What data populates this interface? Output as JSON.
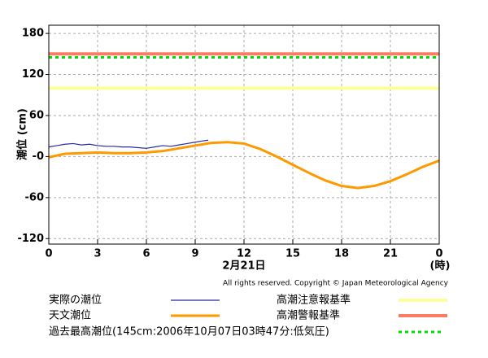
{
  "chart_data": {
    "type": "line",
    "ylabel": "潮位 (cm)",
    "xlabel": "2月21日",
    "xunit": "(時)",
    "copyright": "All rights reserved. Copyright © Japan Meteorological Agency",
    "xlim": [
      0,
      24
    ],
    "xticks": [
      0,
      3,
      6,
      9,
      12,
      15,
      18,
      21,
      {
        "value": 24,
        "label": "0"
      }
    ],
    "ylim": [
      -128,
      192
    ],
    "yticks": [
      {
        "value": -120,
        "label": "-120"
      },
      {
        "value": -60,
        "label": "-60"
      },
      {
        "value": 0,
        "label": "-0"
      },
      60,
      120,
      180
    ],
    "grid": true,
    "series": [
      {
        "name": "実際の潮位",
        "color": "#2a2aa0",
        "x": [
          0,
          0.5,
          1,
          1.5,
          2,
          2.5,
          3,
          3.5,
          4,
          4.5,
          5,
          5.5,
          6,
          6.5,
          7,
          7.5,
          8,
          8.5,
          9,
          9.5,
          9.8
        ],
        "values": [
          14,
          16,
          18,
          19,
          17,
          18,
          16,
          15,
          15,
          14,
          14,
          13,
          12,
          14,
          16,
          15,
          17,
          19,
          21,
          23,
          24
        ]
      },
      {
        "name": "天文潮位",
        "color": "#ff9900",
        "x": [
          0,
          1,
          2,
          3,
          4,
          5,
          6,
          7,
          8,
          9,
          10,
          11,
          12,
          13,
          14,
          15,
          16,
          17,
          18,
          19,
          20,
          21,
          22,
          23,
          24
        ],
        "values": [
          -1,
          4,
          5,
          6,
          5,
          5,
          6,
          8,
          12,
          16,
          20,
          21,
          19,
          11,
          0,
          -12,
          -24,
          -35,
          -43,
          -46,
          -43,
          -36,
          -26,
          -15,
          -6
        ]
      }
    ],
    "hlines": [
      {
        "name": "高潮注意報基準",
        "color": "#ffff99",
        "value": 100
      },
      {
        "name": "高潮警報基準",
        "color": "#ff7b66",
        "value": 150
      },
      {
        "name": "過去最高潮位(145cm:2006年10月07日03時47分:低気圧)",
        "color": "#00dd00",
        "value": 145,
        "dashed": true
      }
    ]
  }
}
